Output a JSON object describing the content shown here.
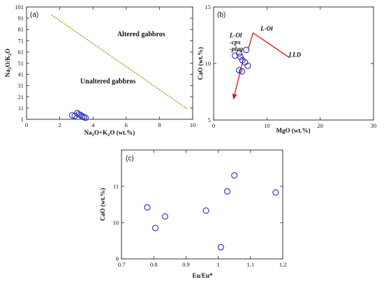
{
  "chart_data": [
    {
      "id": "a",
      "type": "scatter",
      "panel_label": "(a)",
      "xlabel": "Na2O+K2O (wt.%)",
      "ylabel": "Na2O/K2O",
      "xlim": [
        0,
        10
      ],
      "ylim": [
        1,
        101
      ],
      "xticks": [
        0,
        2,
        4,
        6,
        8,
        10
      ],
      "yticks": [
        1,
        11,
        21,
        31,
        41,
        51,
        61,
        71,
        81,
        91,
        101
      ],
      "annotations": [
        {
          "text": "Altered gabbros",
          "x": 6.9,
          "y": 75
        },
        {
          "text": "Unaltered gabbros",
          "x": 4.9,
          "y": 33
        }
      ],
      "boundary_line": {
        "x": [
          1.5,
          9.7
        ],
        "y": [
          94,
          10
        ]
      },
      "points": [
        {
          "x": 2.75,
          "y": 4.5
        },
        {
          "x": 2.9,
          "y": 4.0
        },
        {
          "x": 3.05,
          "y": 6.5
        },
        {
          "x": 3.15,
          "y": 5.5
        },
        {
          "x": 3.25,
          "y": 4.8
        },
        {
          "x": 3.35,
          "y": 3.6
        },
        {
          "x": 3.45,
          "y": 3.0
        },
        {
          "x": 3.55,
          "y": 2.4
        }
      ]
    },
    {
      "id": "b",
      "type": "scatter",
      "panel_label": "(b)",
      "xlabel": "MgO (wt.%)",
      "ylabel": "CaO (wt.%)",
      "xlim": [
        0,
        30
      ],
      "ylim": [
        5,
        15
      ],
      "xticks": [
        0,
        10,
        20,
        30
      ],
      "yticks": [
        5,
        10,
        15
      ],
      "annotations": [
        {
          "text": "L-Ol",
          "x": 8.8,
          "y": 12.9
        },
        {
          "text": "L-Ol",
          "x": 3.0,
          "y": 12.3
        },
        {
          "text": "-cpx",
          "x": 3.0,
          "y": 11.7
        },
        {
          "text": "-plag",
          "x": 3.0,
          "y": 11.1
        },
        {
          "text": "LLD",
          "x": 14.1,
          "y": 10.6
        }
      ],
      "lld_line": {
        "x": [
          6.5,
          7.4,
          14.3
        ],
        "y": [
          11.3,
          12.7,
          10.5
        ]
      },
      "arrow": {
        "from": {
          "x": 5.6,
          "y": 10.5
        },
        "to": {
          "x": 3.7,
          "y": 6.8
        }
      },
      "points": [
        {
          "x": 4.0,
          "y": 10.7
        },
        {
          "x": 4.8,
          "y": 10.9
        },
        {
          "x": 5.0,
          "y": 10.6
        },
        {
          "x": 5.4,
          "y": 10.3
        },
        {
          "x": 6.1,
          "y": 11.2
        },
        {
          "x": 5.9,
          "y": 10.1
        },
        {
          "x": 6.4,
          "y": 9.8
        },
        {
          "x": 4.8,
          "y": 9.4
        },
        {
          "x": 5.3,
          "y": 9.3
        }
      ]
    },
    {
      "id": "c",
      "type": "scatter",
      "panel_label": "(c)",
      "xlabel": "Eu/Eu*",
      "ylabel": "CaO (wt.%)",
      "xlim": [
        0.7,
        1.2
      ],
      "ylim": [
        9,
        12
      ],
      "xticks": [
        "0.7",
        "0.8",
        "0.9",
        "1",
        "1.1",
        "1.2"
      ],
      "yticks": [
        9,
        10,
        11
      ],
      "points": [
        {
          "x": 0.78,
          "y": 10.42
        },
        {
          "x": 0.805,
          "y": 9.85
        },
        {
          "x": 0.835,
          "y": 10.17
        },
        {
          "x": 0.962,
          "y": 10.33
        },
        {
          "x": 1.008,
          "y": 9.32
        },
        {
          "x": 1.028,
          "y": 10.86
        },
        {
          "x": 1.05,
          "y": 11.3
        },
        {
          "x": 1.178,
          "y": 10.83
        }
      ]
    }
  ],
  "colors": {
    "markers": "#2a2ab8",
    "boundary": "#b8860b",
    "lld": "#d11a1a"
  }
}
